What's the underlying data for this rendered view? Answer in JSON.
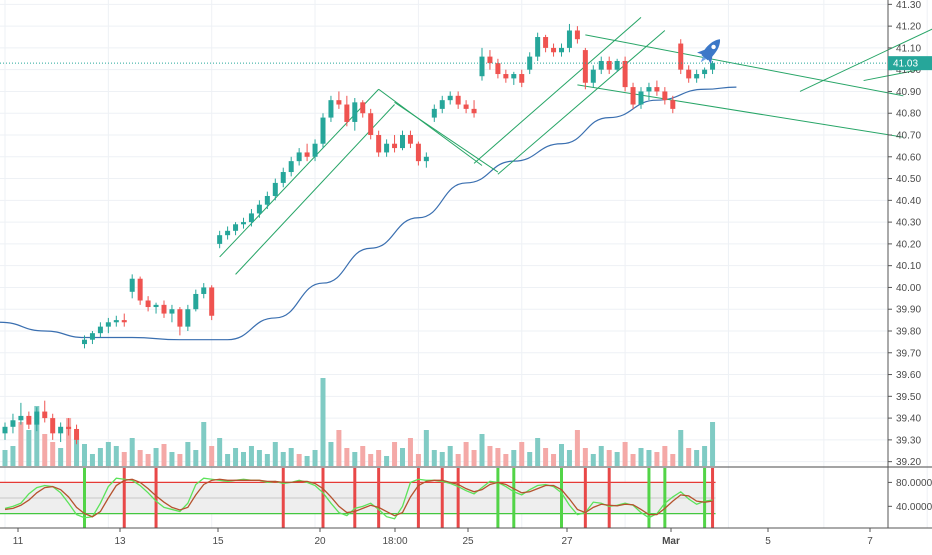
{
  "chart_data": {
    "type": "candlestick",
    "title": "",
    "xlabel": "",
    "ylabel": "",
    "ylim": [
      39.18,
      41.32
    ],
    "yticks": [
      "41.30",
      "41.20",
      "41.10",
      "41.00",
      "40.90",
      "40.80",
      "40.70",
      "40.60",
      "40.50",
      "40.40",
      "40.30",
      "40.20",
      "40.10",
      "40.00",
      "39.90",
      "39.80",
      "39.70",
      "39.60",
      "39.50",
      "39.40",
      "39.30",
      "39.20"
    ],
    "last_price_label": "41.03",
    "last_price": 41.03,
    "x_labels": [
      "11",
      "13",
      "15",
      "20",
      "18:00",
      "25",
      "27",
      "Mar",
      "5",
      "7"
    ],
    "x_label_index": [
      0,
      13,
      26,
      39,
      52,
      65,
      78,
      91,
      103,
      116
    ],
    "oscillator": {
      "yticks": [
        "80.0000",
        "40.0000"
      ],
      "upper_level": 80,
      "lower_level": 20,
      "ylim": [
        0,
        100
      ]
    },
    "candles": [
      [
        39.33,
        39.38,
        39.3,
        39.36
      ],
      [
        39.36,
        39.42,
        39.33,
        39.39
      ],
      [
        39.39,
        39.47,
        39.37,
        39.41
      ],
      [
        39.41,
        39.43,
        39.35,
        39.37
      ],
      [
        39.37,
        39.45,
        39.34,
        39.43
      ],
      [
        39.43,
        39.48,
        39.38,
        39.4
      ],
      [
        39.4,
        39.42,
        39.3,
        39.33
      ],
      [
        39.33,
        39.38,
        39.29,
        39.36
      ],
      [
        39.36,
        39.4,
        39.32,
        39.35
      ],
      [
        39.35,
        39.37,
        39.28,
        39.3
      ],
      [
        39.74,
        39.78,
        39.72,
        39.76
      ],
      [
        39.76,
        39.8,
        39.74,
        39.79
      ],
      [
        39.79,
        39.84,
        39.77,
        39.82
      ],
      [
        39.82,
        39.86,
        39.79,
        39.84
      ],
      [
        39.84,
        39.87,
        39.82,
        39.85
      ],
      [
        39.85,
        39.88,
        39.82,
        39.84
      ],
      [
        39.98,
        40.06,
        39.95,
        40.04
      ],
      [
        40.04,
        40.05,
        39.92,
        39.94
      ],
      [
        39.94,
        39.96,
        39.89,
        39.91
      ],
      [
        39.91,
        39.93,
        39.88,
        39.92
      ],
      [
        39.92,
        39.94,
        39.86,
        39.88
      ],
      [
        39.88,
        39.92,
        39.84,
        39.9
      ],
      [
        39.9,
        39.91,
        39.78,
        39.82
      ],
      [
        39.82,
        39.92,
        39.8,
        39.9
      ],
      [
        39.9,
        39.99,
        39.89,
        39.97
      ],
      [
        39.97,
        40.02,
        39.95,
        40.0
      ],
      [
        40.0,
        40.01,
        39.85,
        39.87
      ],
      [
        40.2,
        40.26,
        40.18,
        40.24
      ],
      [
        40.24,
        40.28,
        40.22,
        40.26
      ],
      [
        40.26,
        40.3,
        40.24,
        40.29
      ],
      [
        40.29,
        40.32,
        40.27,
        40.3
      ],
      [
        40.3,
        40.36,
        40.28,
        40.34
      ],
      [
        40.34,
        40.4,
        40.32,
        40.38
      ],
      [
        40.38,
        40.44,
        40.36,
        40.42
      ],
      [
        40.42,
        40.5,
        40.4,
        40.48
      ],
      [
        40.48,
        40.55,
        40.46,
        40.53
      ],
      [
        40.53,
        40.6,
        40.51,
        40.58
      ],
      [
        40.58,
        40.64,
        40.56,
        40.62
      ],
      [
        40.62,
        40.66,
        40.58,
        40.6
      ],
      [
        40.6,
        40.68,
        40.58,
        40.66
      ],
      [
        40.66,
        40.8,
        40.64,
        40.78
      ],
      [
        40.78,
        40.88,
        40.76,
        40.86
      ],
      [
        40.86,
        40.9,
        40.82,
        40.84
      ],
      [
        40.84,
        40.88,
        40.74,
        40.76
      ],
      [
        40.76,
        40.87,
        40.72,
        40.85
      ],
      [
        40.85,
        40.86,
        40.78,
        40.8
      ],
      [
        40.8,
        40.82,
        40.68,
        40.7
      ],
      [
        40.7,
        40.72,
        40.6,
        40.62
      ],
      [
        40.62,
        40.68,
        40.6,
        40.66
      ],
      [
        40.66,
        40.7,
        40.62,
        40.64
      ],
      [
        40.64,
        40.72,
        40.63,
        40.7
      ],
      [
        40.7,
        40.72,
        40.64,
        40.66
      ],
      [
        40.66,
        40.67,
        40.56,
        40.58
      ],
      [
        40.58,
        40.62,
        40.55,
        40.6
      ],
      [
        40.78,
        40.84,
        40.76,
        40.82
      ],
      [
        40.82,
        40.88,
        40.8,
        40.86
      ],
      [
        40.86,
        40.9,
        40.84,
        40.88
      ],
      [
        40.88,
        40.9,
        40.82,
        40.84
      ],
      [
        40.84,
        40.86,
        40.8,
        40.82
      ],
      [
        40.82,
        40.86,
        40.78,
        40.8
      ],
      [
        40.97,
        41.1,
        40.95,
        41.06
      ],
      [
        41.06,
        41.09,
        41.0,
        41.03
      ],
      [
        41.03,
        41.05,
        40.96,
        40.98
      ],
      [
        40.98,
        41.0,
        40.94,
        40.96
      ],
      [
        40.96,
        40.99,
        40.93,
        40.98
      ],
      [
        40.98,
        41.0,
        40.92,
        40.94
      ],
      [
        41.0,
        41.08,
        40.98,
        41.06
      ],
      [
        41.06,
        41.17,
        41.04,
        41.15
      ],
      [
        41.15,
        41.16,
        41.08,
        41.1
      ],
      [
        41.1,
        41.12,
        41.06,
        41.08
      ],
      [
        41.08,
        41.12,
        41.06,
        41.1
      ],
      [
        41.1,
        41.21,
        41.08,
        41.18
      ],
      [
        41.18,
        41.2,
        41.12,
        41.14
      ],
      [
        41.09,
        41.1,
        40.91,
        40.94
      ],
      [
        40.94,
        41.02,
        40.92,
        41.0
      ],
      [
        41.0,
        41.06,
        40.98,
        41.04
      ],
      [
        41.04,
        41.06,
        40.98,
        41.0
      ],
      [
        41.0,
        41.05,
        40.99,
        41.04
      ],
      [
        41.04,
        41.06,
        40.9,
        40.92
      ],
      [
        40.92,
        40.94,
        40.82,
        40.84
      ],
      [
        40.84,
        40.92,
        40.82,
        40.9
      ],
      [
        40.9,
        40.94,
        40.86,
        40.92
      ],
      [
        40.92,
        40.95,
        40.88,
        40.9
      ],
      [
        40.9,
        40.92,
        40.84,
        40.86
      ],
      [
        40.86,
        40.88,
        40.8,
        40.82
      ],
      [
        41.12,
        41.14,
        40.98,
        41.0
      ],
      [
        41.0,
        41.02,
        40.94,
        40.96
      ],
      [
        40.96,
        41.0,
        40.94,
        40.98
      ],
      [
        40.98,
        41.01,
        40.96,
        41.0
      ],
      [
        41.0,
        41.04,
        40.98,
        41.03
      ]
    ],
    "ma": {
      "color": "#3a6fb0",
      "x_index": [
        0,
        5,
        10,
        16,
        22,
        28,
        34,
        40,
        46,
        52,
        58,
        64,
        70,
        76,
        82,
        88,
        92
      ],
      "values": [
        39.84,
        39.8,
        39.77,
        39.77,
        39.76,
        39.76,
        39.86,
        40.02,
        40.18,
        40.32,
        40.48,
        40.58,
        40.66,
        40.78,
        40.86,
        40.91,
        40.92
      ]
    },
    "volumes": [
      8,
      10,
      22,
      18,
      30,
      16,
      12,
      9,
      24,
      14,
      11,
      6,
      9,
      12,
      10,
      7,
      14,
      8,
      6,
      9,
      11,
      7,
      6,
      12,
      8,
      22,
      10,
      14,
      6,
      9,
      7,
      10,
      8,
      6,
      12,
      7,
      9,
      6,
      5,
      8,
      44,
      12,
      18,
      9,
      7,
      10,
      6,
      8,
      5,
      12,
      9,
      14,
      6,
      18,
      8,
      7,
      10,
      6,
      12,
      8,
      16,
      10,
      9,
      6,
      8,
      12,
      7,
      14,
      9,
      6,
      11,
      8,
      18,
      9,
      6,
      10,
      8,
      7,
      12,
      6,
      9,
      8,
      7,
      10,
      6,
      18,
      9,
      8,
      10,
      22
    ],
    "volumes_up": [
      1,
      1,
      0,
      1,
      1,
      0,
      0,
      1,
      0,
      1,
      1,
      1,
      1,
      1,
      1,
      0,
      1,
      0,
      0,
      1,
      0,
      1,
      0,
      1,
      1,
      1,
      0,
      1,
      1,
      1,
      1,
      1,
      1,
      1,
      1,
      1,
      1,
      0,
      1,
      1,
      1,
      1,
      0,
      0,
      1,
      0,
      0,
      0,
      1,
      0,
      1,
      0,
      0,
      1,
      1,
      1,
      1,
      0,
      0,
      0,
      1,
      0,
      0,
      0,
      1,
      0,
      1,
      1,
      0,
      0,
      1,
      1,
      0,
      0,
      1,
      1,
      0,
      1,
      0,
      0,
      1,
      1,
      0,
      0,
      0,
      1,
      0,
      1,
      1,
      1
    ],
    "stoch_k": [
      30,
      34,
      40,
      58,
      70,
      74,
      72,
      60,
      40,
      18,
      12,
      14,
      40,
      72,
      88,
      86,
      84,
      74,
      60,
      44,
      32,
      28,
      24,
      40,
      76,
      88,
      86,
      84,
      82,
      84,
      86,
      84,
      84,
      80,
      82,
      78,
      80,
      84,
      80,
      74,
      60,
      40,
      22,
      16,
      30,
      34,
      40,
      28,
      14,
      10,
      34,
      80,
      86,
      84,
      84,
      82,
      78,
      72,
      64,
      58,
      70,
      82,
      80,
      72,
      62,
      56,
      66,
      74,
      76,
      72,
      60,
      36,
      18,
      22,
      42,
      40,
      34,
      36,
      40,
      36,
      22,
      12,
      20,
      40,
      52,
      62,
      48,
      38,
      44,
      46
    ],
    "stoch_d": [
      28,
      30,
      36,
      46,
      60,
      70,
      72,
      66,
      52,
      32,
      20,
      14,
      24,
      50,
      74,
      84,
      86,
      80,
      68,
      54,
      42,
      32,
      27,
      32,
      56,
      76,
      84,
      86,
      84,
      84,
      84,
      84,
      84,
      82,
      82,
      80,
      80,
      82,
      82,
      78,
      68,
      52,
      34,
      22,
      24,
      30,
      36,
      32,
      24,
      16,
      22,
      52,
      74,
      82,
      84,
      84,
      80,
      76,
      68,
      62,
      66,
      76,
      80,
      76,
      68,
      60,
      62,
      68,
      74,
      74,
      66,
      48,
      28,
      22,
      32,
      38,
      36,
      35,
      38,
      37,
      28,
      18,
      18,
      30,
      44,
      56,
      54,
      44,
      42,
      44
    ],
    "signal_bars": [
      {
        "i": 10,
        "c": "green"
      },
      {
        "i": 15,
        "c": "red"
      },
      {
        "i": 19,
        "c": "red"
      },
      {
        "i": 35,
        "c": "red"
      },
      {
        "i": 40,
        "c": "red"
      },
      {
        "i": 44,
        "c": "red"
      },
      {
        "i": 47,
        "c": "red"
      },
      {
        "i": 52,
        "c": "red"
      },
      {
        "i": 55,
        "c": "red"
      },
      {
        "i": 57,
        "c": "red"
      },
      {
        "i": 62,
        "c": "green"
      },
      {
        "i": 64,
        "c": "green"
      },
      {
        "i": 70,
        "c": "green"
      },
      {
        "i": 73,
        "c": "red"
      },
      {
        "i": 76,
        "c": "red"
      },
      {
        "i": 81,
        "c": "green"
      },
      {
        "i": 83,
        "c": "green"
      },
      {
        "i": 88,
        "c": "green"
      },
      {
        "i": 89,
        "c": "red"
      }
    ],
    "trend_lines": [
      {
        "from": [
          27,
          40.14
        ],
        "to": [
          47,
          40.91
        ]
      },
      {
        "from": [
          29,
          40.06
        ],
        "to": [
          49,
          40.84
        ]
      },
      {
        "from": [
          47,
          40.91
        ],
        "to": [
          60,
          40.56
        ]
      },
      {
        "from": [
          49,
          40.85
        ],
        "to": [
          62,
          40.53
        ]
      },
      {
        "from": [
          59,
          40.57
        ],
        "to": [
          80,
          41.24
        ]
      },
      {
        "from": [
          62,
          40.52
        ],
        "to": [
          83,
          41.18
        ]
      },
      {
        "from": [
          73,
          41.16
        ],
        "to": [
          113,
          40.88
        ]
      },
      {
        "from": [
          72,
          40.93
        ],
        "to": [
          113,
          40.69
        ]
      },
      {
        "from": [
          100,
          40.9
        ],
        "to": [
          118,
          41.21
        ]
      },
      {
        "from": [
          108,
          40.95
        ],
        "to": [
          129,
          41.1
        ]
      }
    ]
  },
  "marker": {
    "name": "rocket-icon",
    "color": "#3c78c8"
  },
  "colors": {
    "up": "#26a69a",
    "down": "#ef5350",
    "volume_up": "#80cbc4",
    "volume_down": "#f4a9a7",
    "trend": "#27a567",
    "osc_upper": "#e53935",
    "osc_lower": "#43c73f"
  }
}
